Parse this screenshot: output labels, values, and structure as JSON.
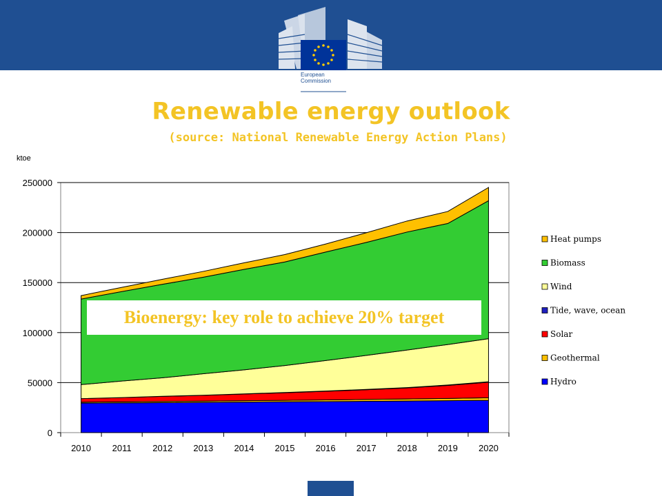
{
  "header": {
    "logo_line1": "European",
    "logo_line2": "Commission",
    "colors": {
      "band": "#1f4f92",
      "accent": "#f3c425"
    }
  },
  "slide": {
    "title": "Renewable energy outlook",
    "subtitle": "(source: National Renewable Energy Action Plans)"
  },
  "chart_data": {
    "type": "area",
    "stacked": true,
    "unit_label": "ktoe",
    "x": [
      2010,
      2011,
      2012,
      2013,
      2014,
      2015,
      2016,
      2017,
      2018,
      2019,
      2020
    ],
    "x_tick_labels": [
      "2010",
      "2011",
      "2012",
      "2013",
      "2014",
      "2015",
      "2016",
      "2017",
      "2018",
      "2019",
      "2020"
    ],
    "ylim": [
      0,
      250000
    ],
    "y_ticks": [
      0,
      50000,
      100000,
      150000,
      200000,
      250000
    ],
    "y_tick_labels": [
      "0",
      "50000",
      "100000",
      "150000",
      "200000",
      "250000"
    ],
    "grid": true,
    "legend_position": "right",
    "series": [
      {
        "name": "Hydro",
        "color": "#0000ff",
        "values": [
          29500,
          29700,
          30000,
          30200,
          30500,
          30800,
          31000,
          31300,
          31600,
          31900,
          32300
        ]
      },
      {
        "name": "Geothermal",
        "color": "#ffc000",
        "values": [
          1000,
          1100,
          1200,
          1300,
          1400,
          1500,
          1700,
          1900,
          2100,
          2300,
          2600
        ]
      },
      {
        "name": "Solar",
        "color": "#ff0000",
        "values": [
          3500,
          4200,
          5000,
          5800,
          6700,
          7600,
          8600,
          9700,
          11000,
          13000,
          15500
        ]
      },
      {
        "name": "Tide, wave, ocean",
        "color": "#1f1fbf",
        "values": [
          0,
          50,
          100,
          100,
          150,
          200,
          250,
          300,
          350,
          400,
          500
        ]
      },
      {
        "name": "Wind",
        "color": "#ffff99",
        "values": [
          14000,
          16500,
          18500,
          21500,
          24000,
          27000,
          30500,
          34000,
          37500,
          40500,
          43000
        ]
      },
      {
        "name": "Biomass",
        "color": "#33cc33",
        "values": [
          85500,
          89500,
          93500,
          96500,
          100500,
          103500,
          108500,
          113000,
          118000,
          121000,
          138000
        ]
      },
      {
        "name": "Heat pumps",
        "color": "#ffc000",
        "values": [
          3500,
          4200,
          5000,
          5800,
          6500,
          7400,
          8000,
          9600,
          11000,
          12000,
          13200
        ]
      }
    ],
    "annotation": "Bioenergy: key role to achieve 20% target"
  }
}
